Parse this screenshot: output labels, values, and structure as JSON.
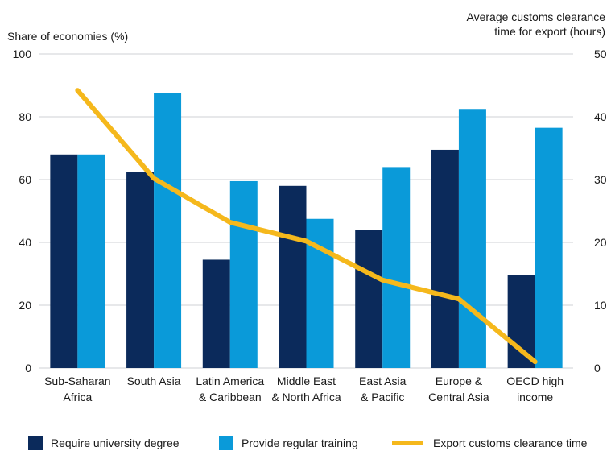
{
  "chart_data": {
    "type": "bar",
    "left_axis_title": "Share of economies (%)",
    "right_axis_title_lines": [
      "Average customs clearance",
      "time for export (hours)"
    ],
    "categories": [
      [
        "Sub-Saharan",
        "Africa"
      ],
      [
        "South Asia"
      ],
      [
        "Latin America",
        "& Caribbean"
      ],
      [
        "Middle East",
        "& North Africa"
      ],
      [
        "East Asia",
        "& Pacific"
      ],
      [
        "Europe &",
        "Central Asia"
      ],
      [
        "OECD high",
        "income"
      ]
    ],
    "ylim_left": [
      0,
      100
    ],
    "yticks_left": [
      0,
      20,
      40,
      60,
      80,
      100
    ],
    "ylim_right": [
      0,
      50
    ],
    "yticks_right": [
      0,
      10,
      20,
      30,
      40,
      50
    ],
    "grid": false,
    "legend_position": "bottom",
    "series": [
      {
        "name": "Require university degree",
        "kind": "bar",
        "axis": "left",
        "color": "#0b2a5b",
        "values": [
          68,
          62.5,
          34.5,
          58,
          44,
          69.5,
          29.5
        ]
      },
      {
        "name": "Provide regular training",
        "kind": "bar",
        "axis": "left",
        "color": "#0a9ad9",
        "values": [
          68,
          87.5,
          59.5,
          47.5,
          64,
          82.5,
          76.5
        ]
      },
      {
        "name": "Export customs clearance time",
        "kind": "line",
        "axis": "right",
        "color": "#f5b81c",
        "values": [
          44.2,
          30.2,
          23.2,
          20.2,
          14,
          11,
          1
        ]
      }
    ]
  }
}
